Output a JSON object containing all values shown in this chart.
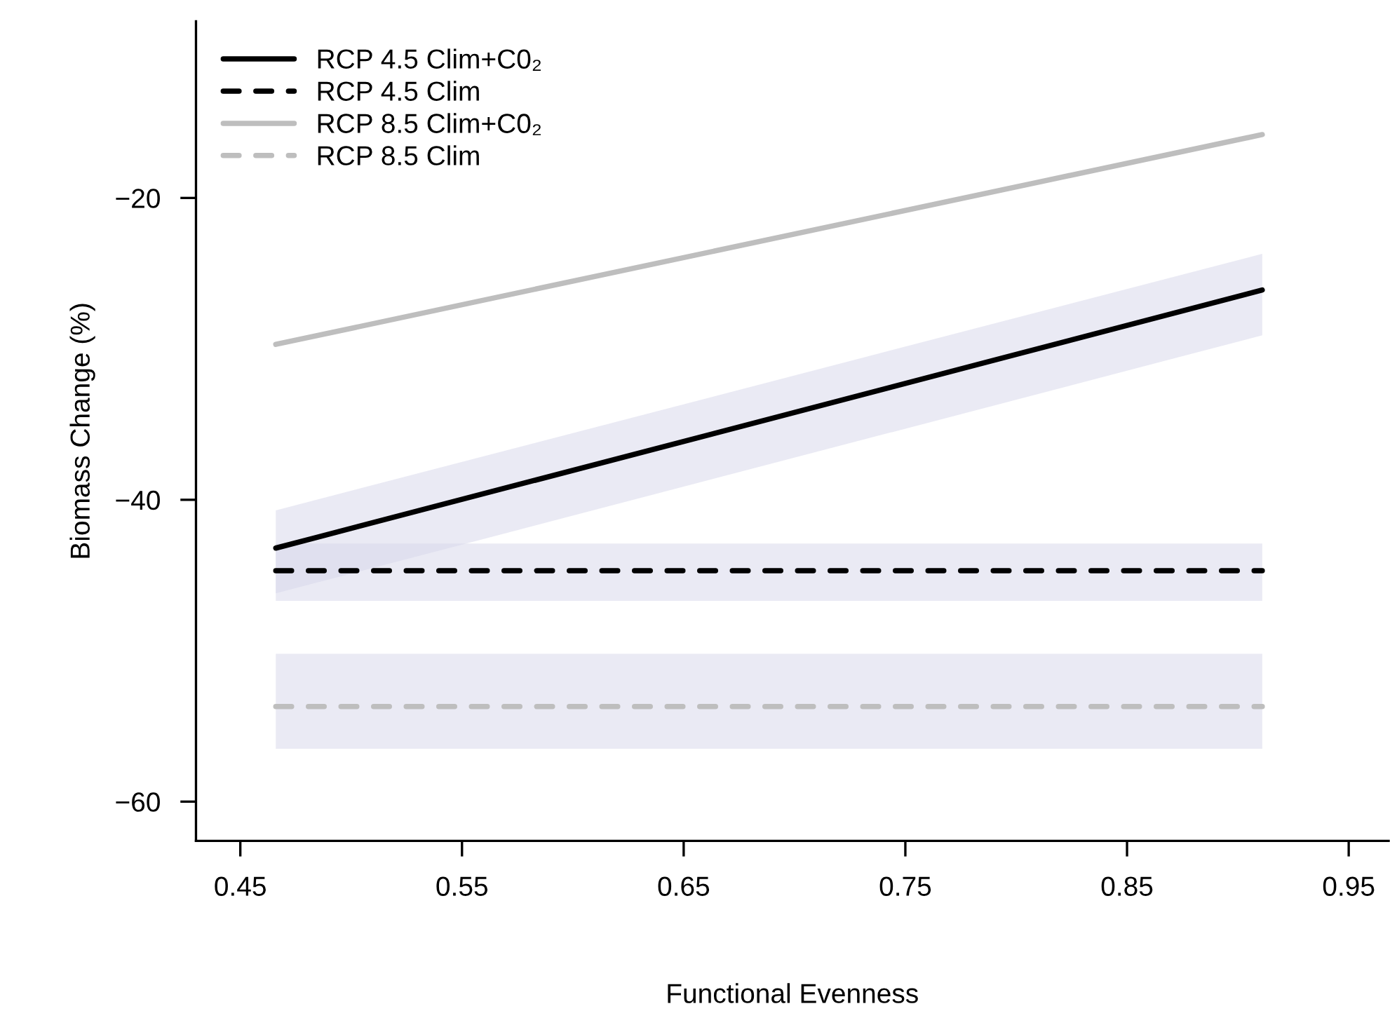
{
  "chart_data": {
    "type": "line",
    "xlabel": "Functional Evenness",
    "ylabel": "Biomass Change (%)",
    "xlim": [
      0.43,
      0.968
    ],
    "ylim": [
      -62.6,
      -8.3
    ],
    "xticks": [
      0.45,
      0.55,
      0.65,
      0.75,
      0.85,
      0.95
    ],
    "yticks": [
      -60,
      -40,
      -20
    ],
    "grid": false,
    "legend": "top left",
    "marker": "none",
    "x": [
      0.466,
      0.911
    ],
    "series": [
      {
        "name": "RCP 4.5 Clim+C0₂",
        "color": "#000000",
        "line_style": "solid",
        "values": [
          -43.2,
          -26.1
        ],
        "lower": [
          -46.2,
          -29.1
        ],
        "upper": [
          -40.7,
          -23.7
        ]
      },
      {
        "name": "RCP 4.5 Clim",
        "color": "#000000",
        "line_style": "dashed",
        "values": [
          -44.7,
          -44.7
        ],
        "lower": [
          -46.7,
          -46.7
        ],
        "upper": [
          -42.9,
          -42.9
        ]
      },
      {
        "name": "RCP 8.5 Clim+C0₂",
        "color": "#bebebe",
        "line_style": "solid",
        "values": [
          -29.7,
          -15.8
        ]
      },
      {
        "name": "RCP 8.5 Clim",
        "color": "#bebebe",
        "line_style": "dashed",
        "values": [
          -53.7,
          -53.7
        ],
        "lower": [
          -56.5,
          -56.5
        ],
        "upper": [
          -50.2,
          -50.2
        ]
      }
    ]
  }
}
